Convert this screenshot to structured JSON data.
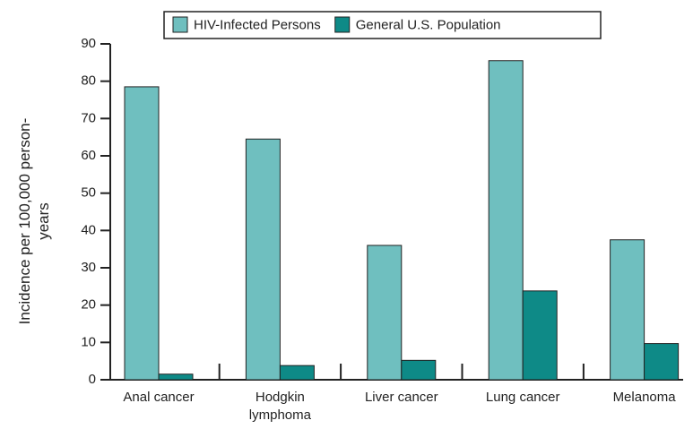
{
  "chart_data": {
    "type": "bar",
    "ylabel": "Incidence per 100,000 person-years",
    "categories": [
      "Anal cancer",
      "Hodgkin lymphoma",
      "Liver cancer",
      "Lung cancer",
      "Melanoma"
    ],
    "series": [
      {
        "name": "HIV-Infected Persons",
        "color": "#6fbfbf",
        "values": [
          78.5,
          64.5,
          36,
          85.5,
          37.5
        ]
      },
      {
        "name": "General U.S. Population",
        "color": "#0e8a87",
        "values": [
          1.5,
          3.8,
          5.2,
          23.8,
          9.7
        ]
      }
    ],
    "ylim": [
      0,
      90
    ],
    "yticks": [
      0,
      10,
      20,
      30,
      40,
      50,
      60,
      70,
      80,
      90
    ],
    "legend": "top"
  }
}
